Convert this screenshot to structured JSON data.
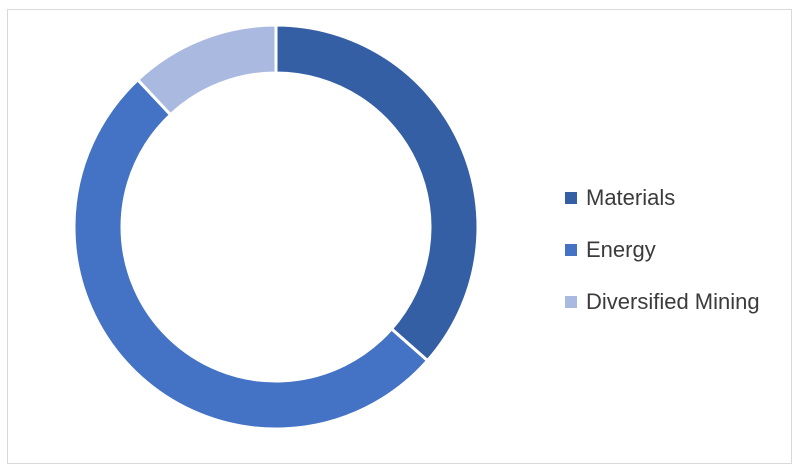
{
  "chart_data": {
    "type": "pie",
    "subtype": "donut",
    "title": "",
    "categories": [
      "Materials",
      "Energy",
      "Diversified Mining"
    ],
    "values": [
      36.5,
      51.5,
      12.0
    ],
    "colors": [
      "#355fa4",
      "#4472c4",
      "#a9b9df"
    ],
    "legend": {
      "placement": "right",
      "entries": [
        "Materials",
        "Energy",
        "Diversified Mining"
      ]
    }
  }
}
